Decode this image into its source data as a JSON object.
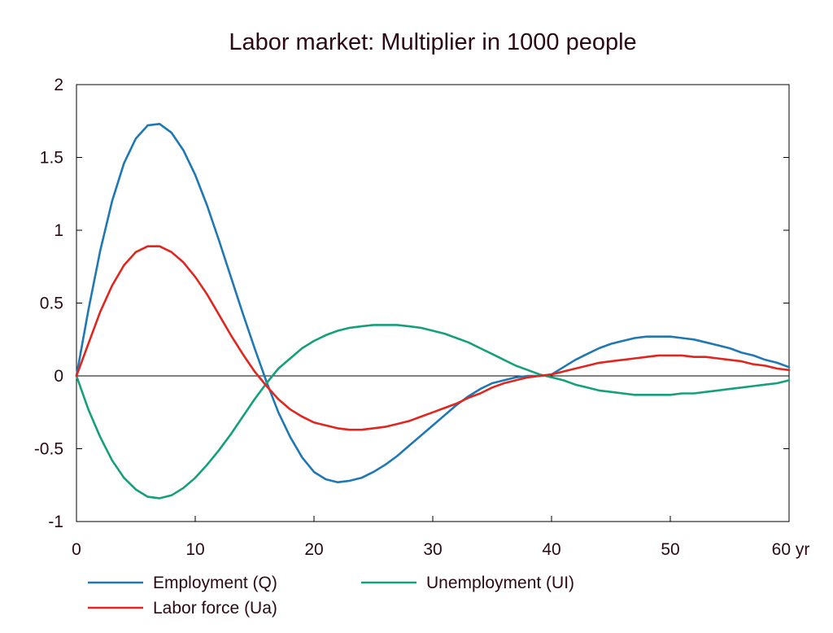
{
  "chart_data": {
    "type": "line",
    "title": "Labor market: Multiplier in 1000 people",
    "x_unit": "yr",
    "xlim": [
      0,
      60
    ],
    "ylim": [
      -1,
      2
    ],
    "x_ticks": [
      "0",
      "10",
      "20",
      "30",
      "40",
      "50",
      "60 yr"
    ],
    "y_ticks": [
      "2",
      "1.5",
      "1",
      "0.5",
      "0",
      "-0.5",
      "-1"
    ],
    "x_tick_values": [
      0,
      10,
      20,
      30,
      40,
      50,
      60
    ],
    "y_tick_values": [
      2,
      1.5,
      1,
      0.5,
      0,
      -0.5,
      -1
    ],
    "grid": false,
    "zero_line": true,
    "legend_position": "bottom",
    "x": [
      0,
      1,
      2,
      3,
      4,
      5,
      6,
      7,
      8,
      9,
      10,
      11,
      12,
      13,
      14,
      15,
      16,
      17,
      18,
      19,
      20,
      21,
      22,
      23,
      24,
      25,
      26,
      27,
      28,
      29,
      30,
      31,
      32,
      33,
      34,
      35,
      36,
      37,
      38,
      39,
      40,
      41,
      42,
      43,
      44,
      45,
      46,
      47,
      48,
      49,
      50,
      51,
      52,
      53,
      54,
      55,
      56,
      57,
      58,
      59,
      60
    ],
    "series": [
      {
        "name": "Employment (Q)",
        "color": "#1f78b4",
        "values": [
          0.0,
          0.45,
          0.86,
          1.2,
          1.46,
          1.63,
          1.72,
          1.73,
          1.67,
          1.55,
          1.38,
          1.17,
          0.93,
          0.68,
          0.43,
          0.19,
          -0.04,
          -0.25,
          -0.42,
          -0.56,
          -0.66,
          -0.71,
          -0.73,
          -0.72,
          -0.7,
          -0.66,
          -0.61,
          -0.55,
          -0.48,
          -0.41,
          -0.34,
          -0.27,
          -0.2,
          -0.14,
          -0.09,
          -0.05,
          -0.03,
          -0.01,
          0.0,
          0.0,
          0.01,
          0.06,
          0.11,
          0.15,
          0.19,
          0.22,
          0.24,
          0.26,
          0.27,
          0.27,
          0.27,
          0.26,
          0.25,
          0.23,
          0.21,
          0.19,
          0.16,
          0.14,
          0.11,
          0.09,
          0.06
        ]
      },
      {
        "name": "Unemployment (UI)",
        "color": "#16a07a",
        "values": [
          0.0,
          -0.23,
          -0.42,
          -0.58,
          -0.7,
          -0.78,
          -0.83,
          -0.84,
          -0.82,
          -0.77,
          -0.7,
          -0.61,
          -0.51,
          -0.4,
          -0.28,
          -0.16,
          -0.05,
          0.05,
          0.12,
          0.19,
          0.24,
          0.28,
          0.31,
          0.33,
          0.34,
          0.35,
          0.35,
          0.35,
          0.34,
          0.33,
          0.31,
          0.29,
          0.26,
          0.23,
          0.19,
          0.15,
          0.11,
          0.07,
          0.04,
          0.01,
          -0.01,
          -0.03,
          -0.06,
          -0.08,
          -0.1,
          -0.11,
          -0.12,
          -0.13,
          -0.13,
          -0.13,
          -0.13,
          -0.12,
          -0.12,
          -0.11,
          -0.1,
          -0.09,
          -0.08,
          -0.07,
          -0.06,
          -0.05,
          -0.03
        ]
      },
      {
        "name": "Labor force (Ua)",
        "color": "#e0261e",
        "values": [
          0.0,
          0.22,
          0.44,
          0.62,
          0.76,
          0.85,
          0.89,
          0.89,
          0.85,
          0.78,
          0.68,
          0.56,
          0.42,
          0.28,
          0.15,
          0.03,
          -0.07,
          -0.16,
          -0.23,
          -0.28,
          -0.32,
          -0.34,
          -0.36,
          -0.37,
          -0.37,
          -0.36,
          -0.35,
          -0.33,
          -0.31,
          -0.28,
          -0.25,
          -0.22,
          -0.19,
          -0.15,
          -0.12,
          -0.08,
          -0.05,
          -0.03,
          -0.01,
          0.0,
          0.01,
          0.03,
          0.05,
          0.07,
          0.09,
          0.1,
          0.11,
          0.12,
          0.13,
          0.14,
          0.14,
          0.14,
          0.13,
          0.13,
          0.12,
          0.11,
          0.1,
          0.08,
          0.07,
          0.05,
          0.04
        ]
      }
    ],
    "legend": [
      {
        "label": "Employment (Q)",
        "color": "#1f78b4"
      },
      {
        "label": "Unemployment (UI)",
        "color": "#16a07a"
      },
      {
        "label": "Labor force (Ua)",
        "color": "#e0261e"
      }
    ]
  }
}
